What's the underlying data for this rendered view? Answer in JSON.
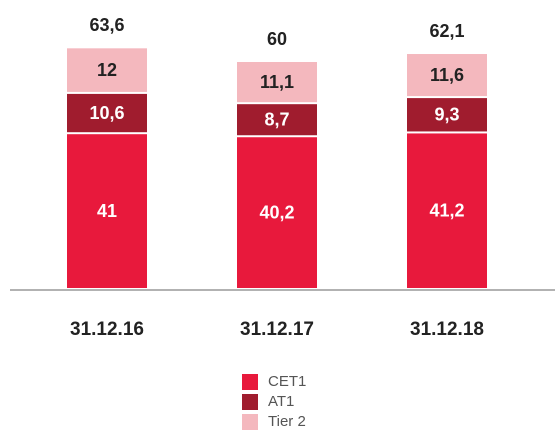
{
  "chart_data": {
    "type": "stacked_bar",
    "categories": [
      "31.12.16",
      "31.12.17",
      "31.12.18"
    ],
    "series": [
      {
        "name": "CET1",
        "color": "#e8193c",
        "values": [
          41,
          40.2,
          41.2
        ],
        "value_labels": [
          "41",
          "40,2",
          "41,2"
        ]
      },
      {
        "name": "AT1",
        "color": "#a01c2e",
        "values": [
          10.6,
          8.7,
          9.3
        ],
        "value_labels": [
          "10,6",
          "8,7",
          "9,3"
        ]
      },
      {
        "name": "Tier 2",
        "color": "#f4b8be",
        "values": [
          12,
          11.1,
          11.6
        ],
        "value_labels": [
          "12",
          "11,1",
          "11,6"
        ]
      }
    ],
    "totals": [
      63.6,
      60,
      62.1
    ],
    "total_labels": [
      "63,6",
      "60",
      "62,1"
    ],
    "legend": "bottom"
  }
}
